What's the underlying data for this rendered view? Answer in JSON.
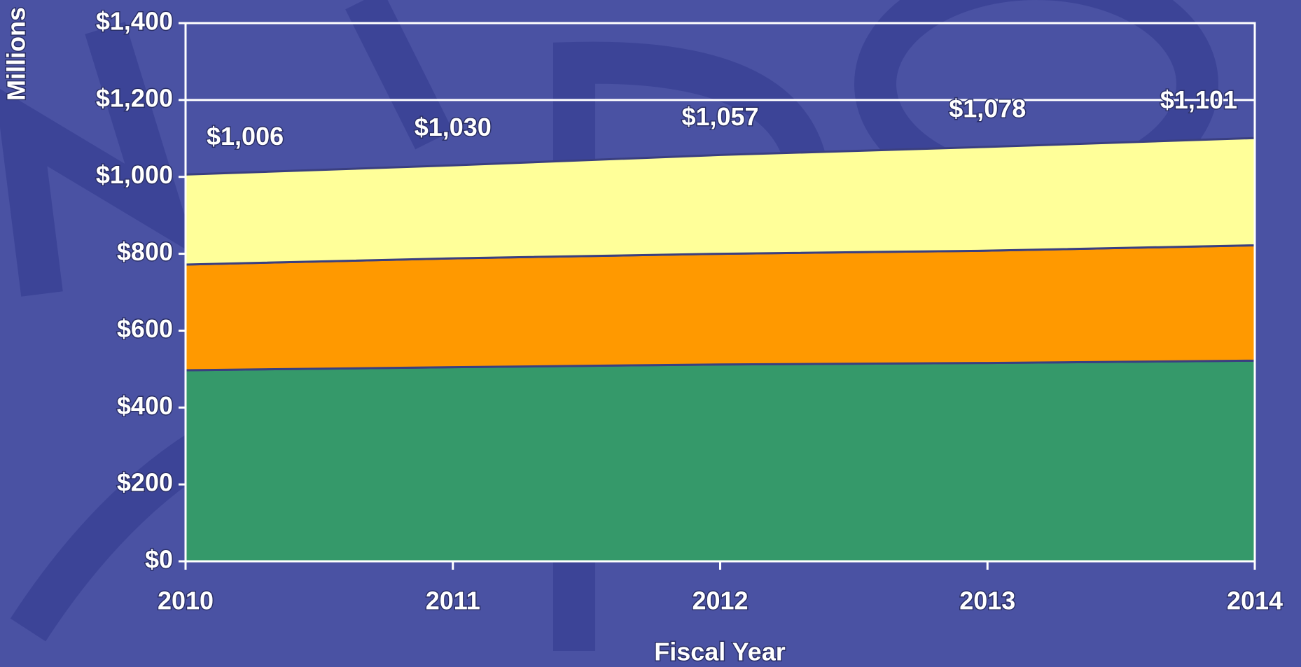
{
  "chart_data": {
    "type": "stacked_area",
    "y_label": "Millions",
    "x_label": "Fiscal Year",
    "categories": [
      "2010",
      "2011",
      "2012",
      "2013",
      "2014"
    ],
    "series": [
      {
        "color": "#35996a",
        "values": [
          497,
          505,
          512,
          516,
          522
        ]
      },
      {
        "color": "#ff9900",
        "values": [
          275,
          283,
          288,
          292,
          300
        ]
      },
      {
        "color": "#ffff99",
        "values": [
          234,
          242,
          257,
          270,
          279
        ]
      }
    ],
    "totals": [
      1006,
      1030,
      1057,
      1078,
      1101
    ],
    "total_labels": [
      "$1,006",
      "$1,030",
      "$1,057",
      "$1,078",
      "$1,101"
    ],
    "ylim": [
      0,
      1400
    ],
    "yticks": [
      {
        "value": 0,
        "label": "$0"
      },
      {
        "value": 200,
        "label": "$200"
      },
      {
        "value": 400,
        "label": "$400"
      },
      {
        "value": 600,
        "label": "$600"
      },
      {
        "value": 800,
        "label": "$800"
      },
      {
        "value": 1000,
        "label": "$1,000"
      },
      {
        "value": 1200,
        "label": "$1,200"
      },
      {
        "value": 1400,
        "label": "$1,400"
      }
    ],
    "grid": true
  }
}
